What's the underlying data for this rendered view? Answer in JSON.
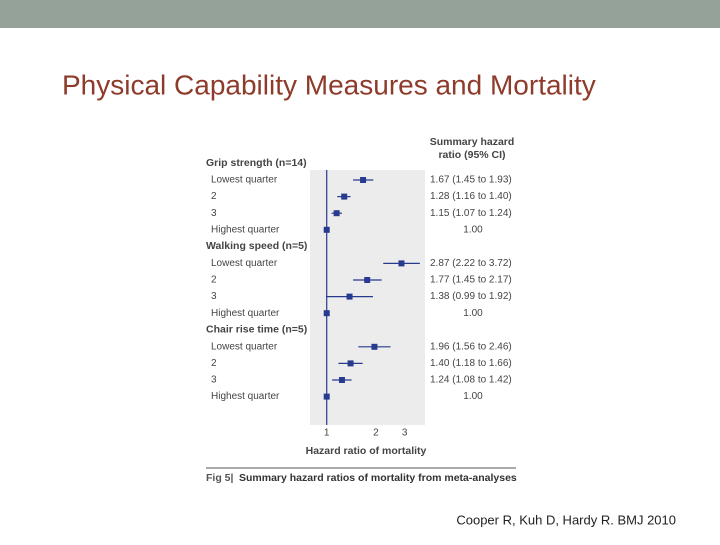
{
  "slide": {
    "title": "Physical Capability Measures and Mortality",
    "citation": "Cooper R, Kuh D, Hardy R. BMJ 2010"
  },
  "chart_data": {
    "type": "forest",
    "column_header": [
      "Summary hazard",
      "ratio (95% CI)"
    ],
    "groups": [
      {
        "name": "Grip strength (n=14)",
        "categories": [
          "Lowest quarter",
          "2",
          "3",
          "Highest quarter"
        ],
        "values": [
          1.67,
          1.28,
          1.15,
          1.0
        ],
        "lower": [
          1.45,
          1.16,
          1.07,
          null
        ],
        "upper": [
          1.93,
          1.4,
          1.24,
          null
        ],
        "value_labels": [
          "1.67 (1.45 to 1.93)",
          "1.28 (1.16 to 1.40)",
          "1.15 (1.07 to 1.24)",
          "1.00"
        ]
      },
      {
        "name": "Walking speed (n=5)",
        "categories": [
          "Lowest quarter",
          "2",
          "3",
          "Highest quarter"
        ],
        "values": [
          2.87,
          1.77,
          1.38,
          1.0
        ],
        "lower": [
          2.22,
          1.45,
          0.99,
          null
        ],
        "upper": [
          3.72,
          2.17,
          1.92,
          null
        ],
        "value_labels": [
          "2.87 (2.22 to 3.72)",
          "1.77 (1.45 to 2.17)",
          "1.38 (0.99 to 1.92)",
          "1.00"
        ]
      },
      {
        "name": "Chair rise time (n=5)",
        "categories": [
          "Lowest quarter",
          "2",
          "3",
          "Highest quarter"
        ],
        "values": [
          1.96,
          1.4,
          1.24,
          1.0
        ],
        "lower": [
          1.56,
          1.18,
          1.08,
          null
        ],
        "upper": [
          2.46,
          1.66,
          1.42,
          null
        ],
        "value_labels": [
          "1.96 (1.56 to 2.46)",
          "1.40 (1.18 to 1.66)",
          "1.24 (1.08 to 1.42)",
          "1.00"
        ]
      }
    ],
    "xlim": [
      0.79,
      4
    ],
    "xticks": [
      1,
      2,
      3
    ],
    "log_x": true,
    "xlabel": "Hazard ratio of mortality",
    "fig_label": "Fig 5|",
    "caption": "Summary hazard ratios of mortality from meta-analyses",
    "color": "#283a8e"
  }
}
